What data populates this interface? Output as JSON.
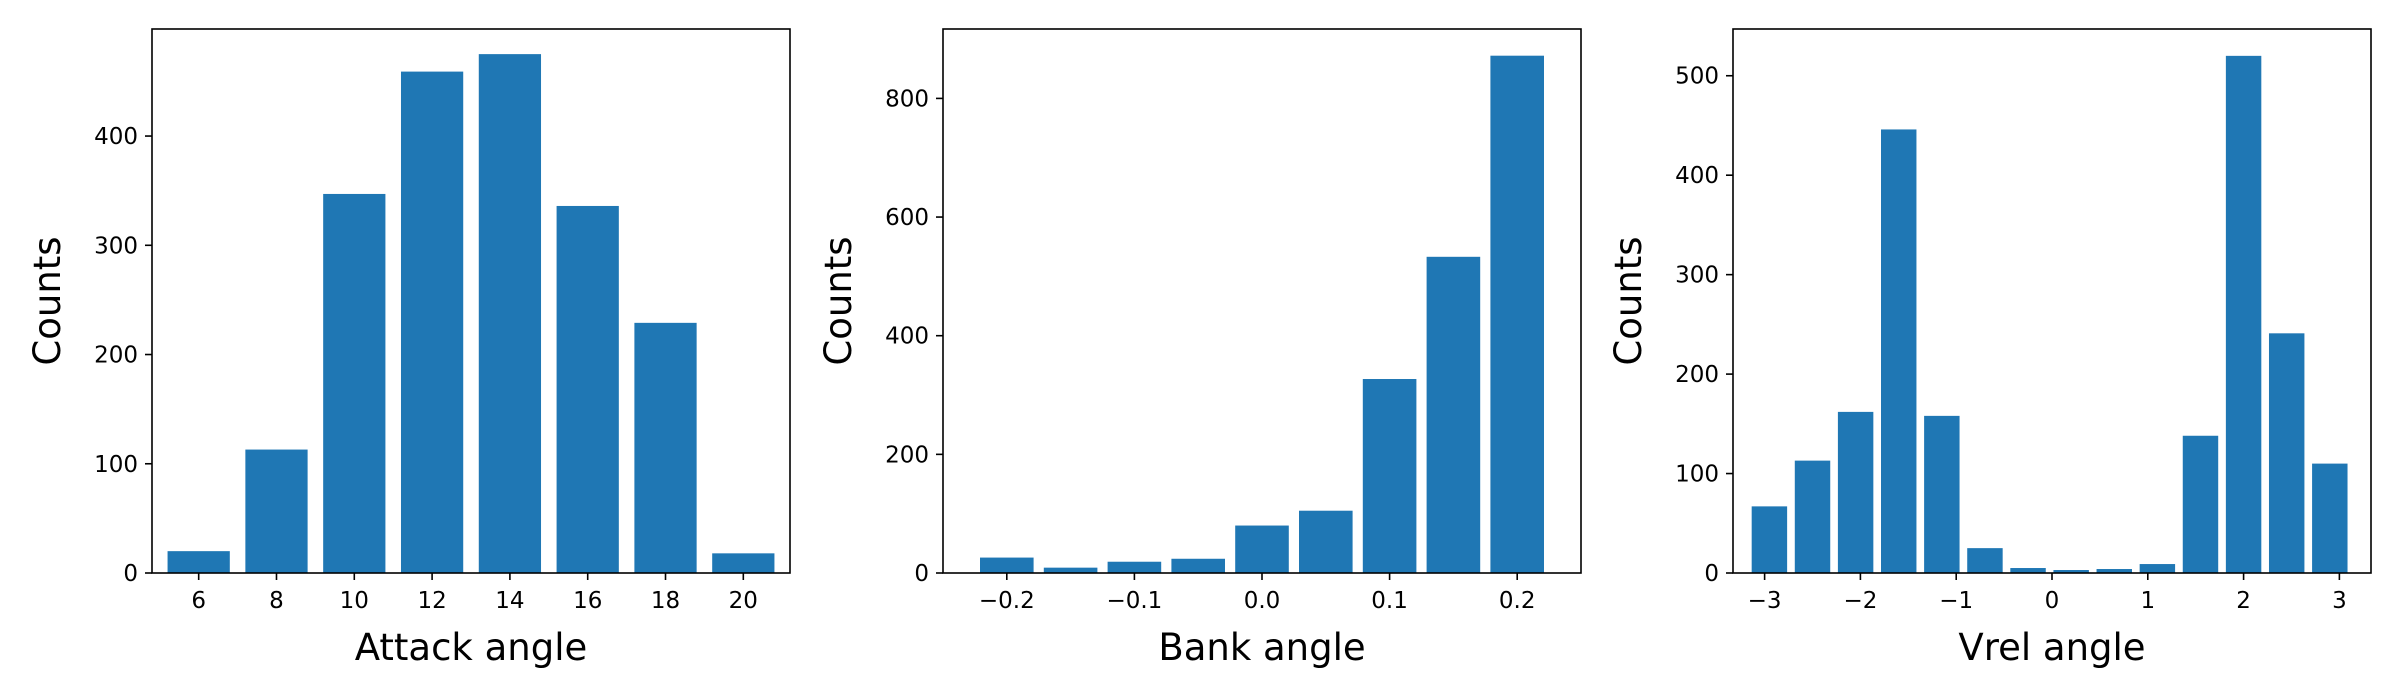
{
  "chart_data": [
    {
      "type": "bar",
      "xlabel": "Attack angle",
      "ylabel": "Counts",
      "xlim": [
        4.8,
        21.2
      ],
      "ylim": [
        0,
        498
      ],
      "xticks": [
        6,
        8,
        10,
        12,
        14,
        16,
        18,
        20
      ],
      "xtick_labels": [
        "6",
        "8",
        "10",
        "12",
        "14",
        "16",
        "18",
        "20"
      ],
      "yticks": [
        0,
        100,
        200,
        300,
        400
      ],
      "ytick_labels": [
        "0",
        "100",
        "200",
        "300",
        "400"
      ],
      "bar_width": 1.6,
      "x": [
        6,
        8,
        10,
        12,
        14,
        16,
        18,
        20
      ],
      "values": [
        20,
        113,
        347,
        459,
        475,
        336,
        229,
        18
      ],
      "color": "#1f77b4"
    },
    {
      "type": "bar",
      "xlabel": "Bank angle",
      "ylabel": "Counts",
      "xlim": [
        -0.25,
        0.25
      ],
      "ylim": [
        0,
        917
      ],
      "xticks": [
        -0.2,
        -0.1,
        0.0,
        0.1,
        0.2
      ],
      "xtick_labels": [
        "−0.2",
        "−0.1",
        "0.0",
        "0.1",
        "0.2"
      ],
      "yticks": [
        0,
        200,
        400,
        600,
        800
      ],
      "ytick_labels": [
        "0",
        "200",
        "400",
        "600",
        "800"
      ],
      "bar_width": 0.042,
      "x": [
        -0.2,
        -0.15,
        -0.1,
        -0.05,
        0.0,
        0.05,
        0.1,
        0.15,
        0.2
      ],
      "values": [
        26,
        9,
        19,
        24,
        80,
        105,
        327,
        533,
        872
      ],
      "color": "#1f77b4"
    },
    {
      "type": "bar",
      "xlabel": "Vrel angle",
      "ylabel": "Counts",
      "xlim": [
        -3.33,
        3.33
      ],
      "ylim": [
        0,
        547
      ],
      "xticks": [
        -3,
        -2,
        -1,
        0,
        1,
        2,
        3
      ],
      "xtick_labels": [
        "−3",
        "−2",
        "−1",
        "0",
        "1",
        "2",
        "3"
      ],
      "yticks": [
        0,
        100,
        200,
        300,
        400,
        500
      ],
      "ytick_labels": [
        "0",
        "100",
        "200",
        "300",
        "400",
        "500"
      ],
      "bar_width": 0.37,
      "x": [
        -2.95,
        -2.5,
        -2.05,
        -1.6,
        -1.15,
        -0.7,
        -0.25,
        0.2,
        0.65,
        1.1,
        1.55,
        2.0,
        2.45,
        2.9
      ],
      "values": [
        67,
        113,
        162,
        446,
        158,
        25,
        5,
        3,
        4,
        9,
        138,
        520,
        241,
        110
      ],
      "color": "#1f77b4"
    }
  ]
}
